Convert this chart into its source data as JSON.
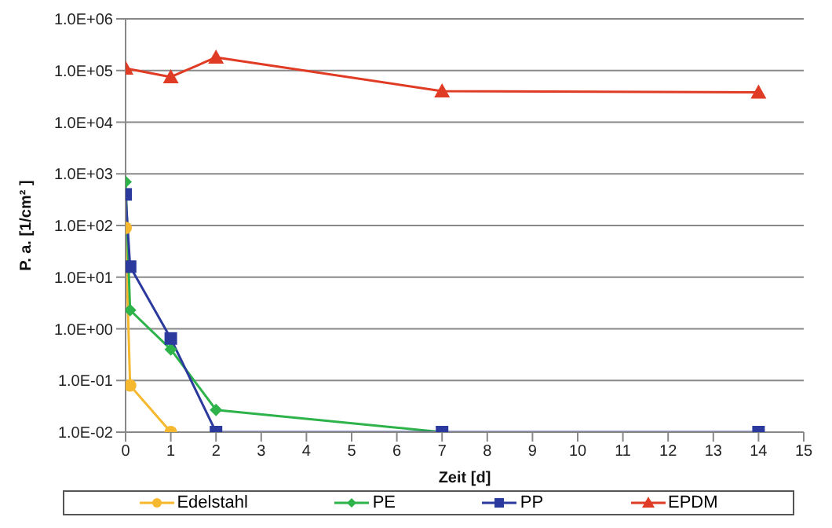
{
  "chart_data": {
    "type": "line",
    "xlabel": "Zeit [d]",
    "ylabel": "P. a. [1/cm² ]",
    "log": "y",
    "grid": "y",
    "legend": "bottom",
    "line_style": "solid",
    "xlim": [
      0,
      15
    ],
    "xticks": [
      0,
      1,
      2,
      3,
      4,
      5,
      6,
      7,
      8,
      9,
      10,
      11,
      12,
      13,
      14,
      15
    ],
    "ylim": [
      0.01,
      1000000
    ],
    "yticks": [
      {
        "value": 0.01,
        "label": "1.0E-02"
      },
      {
        "value": 0.1,
        "label": "1.0E-01"
      },
      {
        "value": 1,
        "label": "1.0E+00"
      },
      {
        "value": 10,
        "label": "1.0E+01"
      },
      {
        "value": 100,
        "label": "1.0E+02"
      },
      {
        "value": 1000,
        "label": "1.0E+03"
      },
      {
        "value": 10000,
        "label": "1.0E+04"
      },
      {
        "value": 100000,
        "label": "1.0E+05"
      },
      {
        "value": 1000000,
        "label": "1.0E+06"
      }
    ],
    "series": [
      {
        "name": "Edelstahl",
        "color": "#f5b82e",
        "marker": "circle",
        "x": [
          0,
          0.1,
          1
        ],
        "values": [
          90,
          0.08,
          0.01
        ]
      },
      {
        "name": "PE",
        "color": "#2db34a",
        "marker": "diamond",
        "x": [
          0,
          0.1,
          1,
          2,
          7
        ],
        "values": [
          700,
          2.3,
          0.4,
          0.027,
          0.01
        ]
      },
      {
        "name": "PP",
        "color": "#2b3a9c",
        "marker": "square",
        "x": [
          0,
          0.1,
          1,
          2,
          7,
          14
        ],
        "values": [
          400,
          16,
          0.65,
          0.01,
          0.01,
          0.01
        ]
      },
      {
        "name": "EPDM",
        "color": "#e03b24",
        "marker": "triangle",
        "x": [
          0,
          1,
          2,
          7,
          14
        ],
        "values": [
          110000,
          75000,
          180000,
          40000,
          38000
        ]
      }
    ]
  }
}
